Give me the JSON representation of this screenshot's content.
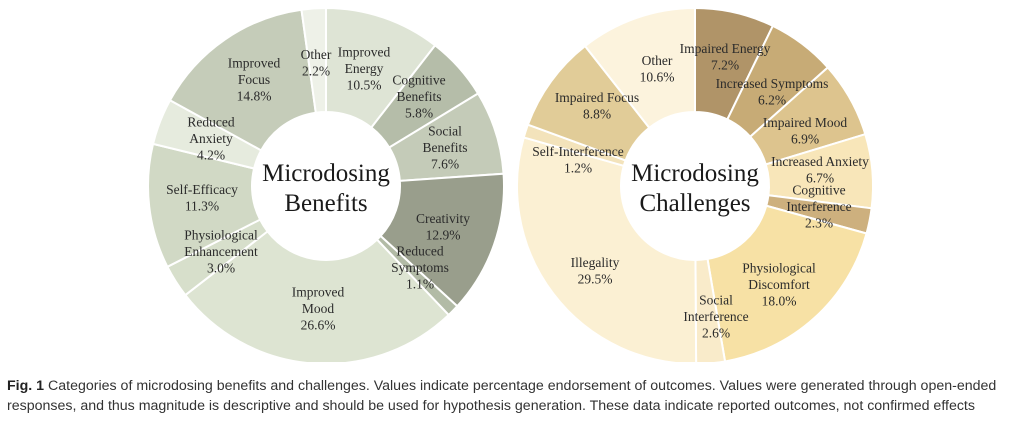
{
  "chart_data": [
    {
      "type": "pie",
      "center_title": [
        "Microdosing",
        "Benefits"
      ],
      "value_unit": "%",
      "slices": [
        {
          "label": [
            "Improved",
            "Energy"
          ],
          "value": 10.5,
          "display": "10.5%",
          "color": "#dee4d5"
        },
        {
          "label": [
            "Cognitive",
            "Benefits"
          ],
          "value": 5.8,
          "display": "5.8%",
          "color": "#b5bda9"
        },
        {
          "label": [
            "Social",
            "Benefits"
          ],
          "value": 7.6,
          "display": "7.6%",
          "color": "#c4cbb8"
        },
        {
          "label": [
            "Creativity"
          ],
          "value": 12.9,
          "display": "12.9%",
          "color": "#999e8c"
        },
        {
          "label": [
            "Reduced",
            "Symptoms"
          ],
          "value": 1.1,
          "display": "1.1%",
          "color": "#b2bba6"
        },
        {
          "label": [
            "Improved",
            "Mood"
          ],
          "value": 26.6,
          "display": "26.6%",
          "color": "#dde4d2"
        },
        {
          "label": [
            "Physiological",
            "Enhancement"
          ],
          "value": 3.0,
          "display": "3.0%",
          "color": "#d7dfcb"
        },
        {
          "label": [
            "Self-Efficacy"
          ],
          "value": 11.3,
          "display": "11.3%",
          "color": "#d1d9c5"
        },
        {
          "label": [
            "Reduced",
            "Anxiety"
          ],
          "value": 4.2,
          "display": "4.2%",
          "color": "#e6ebde"
        },
        {
          "label": [
            "Improved",
            "Focus"
          ],
          "value": 14.8,
          "display": "14.8%",
          "color": "#c5ccb9"
        },
        {
          "label": [
            "Other"
          ],
          "value": 2.2,
          "display": "2.2%",
          "color": "#eef1e8"
        }
      ]
    },
    {
      "type": "pie",
      "center_title": [
        "Microdosing",
        "Challenges"
      ],
      "value_unit": "%",
      "slices": [
        {
          "label": [
            "Impaired Energy"
          ],
          "value": 7.2,
          "display": "7.2%",
          "color": "#b09468"
        },
        {
          "label": [
            "Increased Symptoms"
          ],
          "value": 6.2,
          "display": "6.2%",
          "color": "#c7ab76"
        },
        {
          "label": [
            "Impaired Mood"
          ],
          "value": 6.9,
          "display": "6.9%",
          "color": "#ddc48e"
        },
        {
          "label": [
            "Increased Anxiety"
          ],
          "value": 6.7,
          "display": "6.7%",
          "color": "#f8e6b9"
        },
        {
          "label": [
            "Cognitive",
            "Interference"
          ],
          "value": 2.3,
          "display": "2.3%",
          "color": "#cdb07e"
        },
        {
          "label": [
            "Physiological",
            "Discomfort"
          ],
          "value": 18.0,
          "display": "18.0%",
          "color": "#f7e1a5"
        },
        {
          "label": [
            "Social",
            "Interference"
          ],
          "value": 2.6,
          "display": "2.6%",
          "color": "#f9ebca"
        },
        {
          "label": [
            "Illegality"
          ],
          "value": 29.5,
          "display": "29.5%",
          "color": "#fbf0d3"
        },
        {
          "label": [
            "Self-Interference"
          ],
          "value": 1.2,
          "display": "1.2%",
          "color": "#f3e3bb"
        },
        {
          "label": [
            "Impaired Focus"
          ],
          "value": 8.8,
          "display": "8.8%",
          "color": "#e1cc98"
        },
        {
          "label": [
            "Other"
          ],
          "value": 10.6,
          "display": "10.6%",
          "color": "#fcf3dd"
        }
      ]
    }
  ],
  "caption": {
    "fig_label": "Fig. 1",
    "text": " Categories of microdosing benefits and challenges. Values indicate percentage endorsement of outcomes. Values were generated through open-ended responses, and thus magnitude is descriptive and should be used for hypothesis generation. These data indicate reported outcomes, not confirmed effects"
  }
}
